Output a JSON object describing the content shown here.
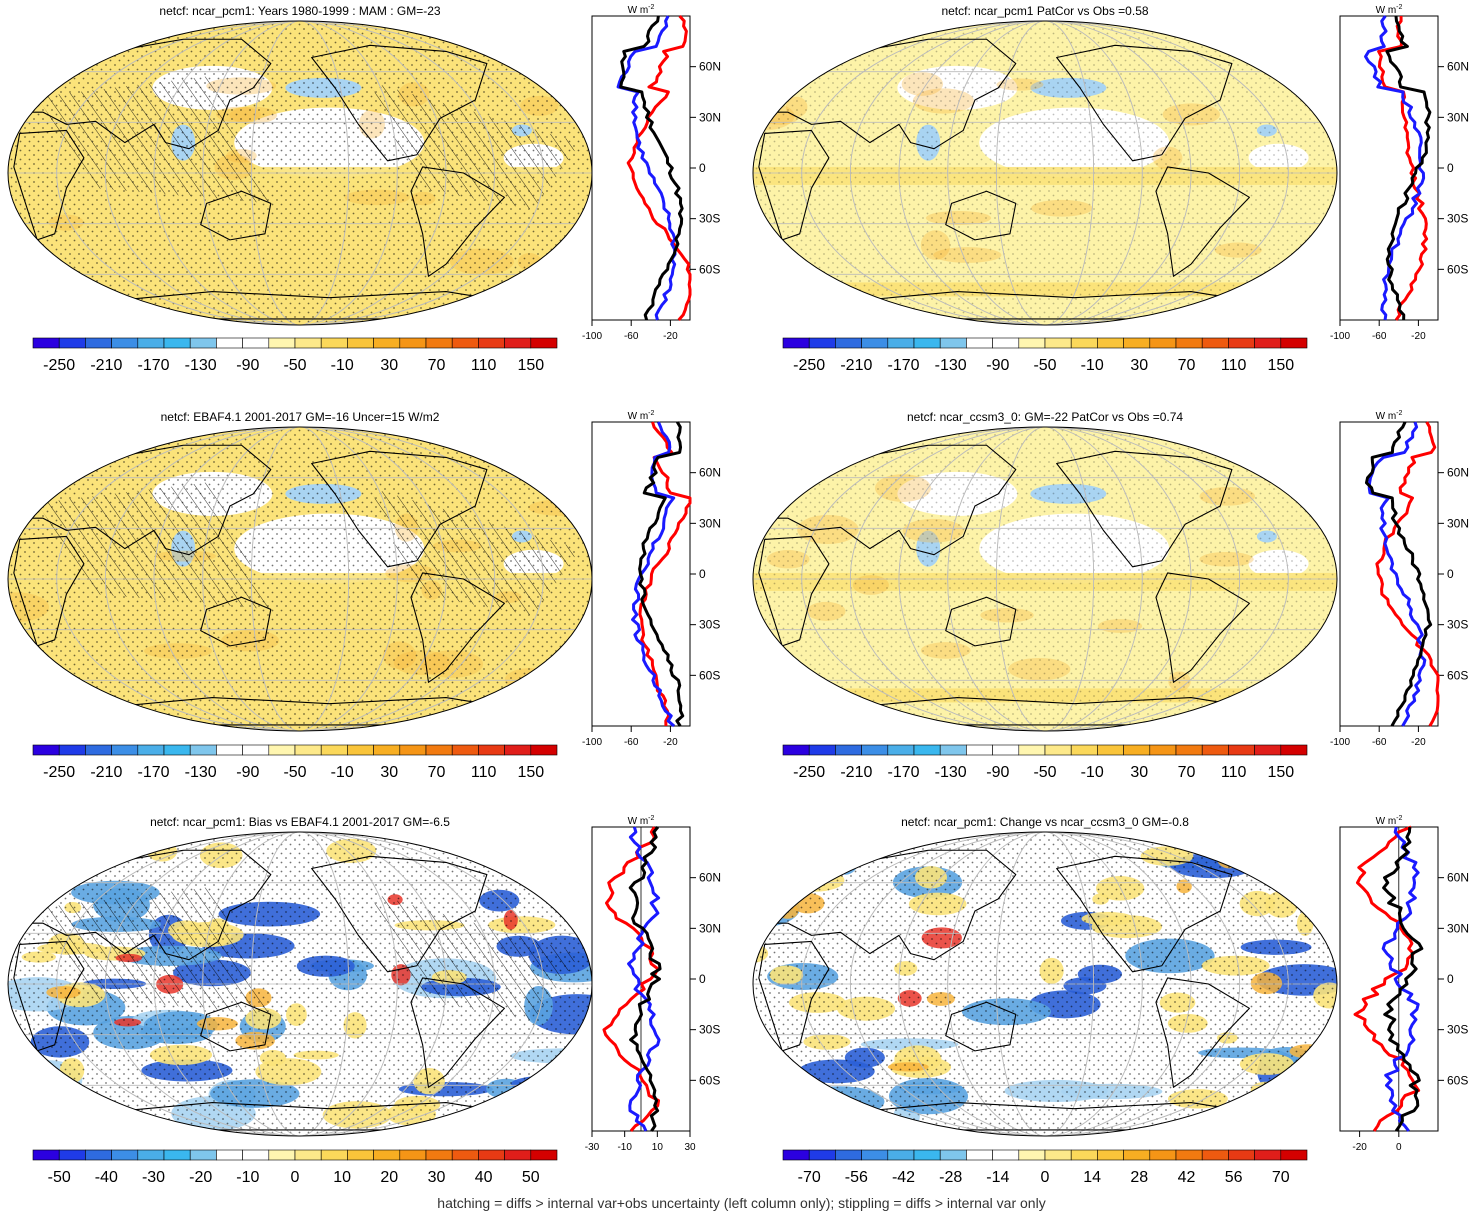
{
  "footnote": "hatching = diffs > internal var+obs uncertainty (left column only); stippling = diffs > internal var only",
  "colors": {
    "yellow_light": "#fdf3a8",
    "yellow": "#fbe37a",
    "orange": "#f7b43c",
    "blue_light": "#a9d4f2",
    "blue": "#5aa3e0",
    "deep_blue": "#2b5fd6",
    "red": "#e8352a",
    "zonal_red": "#ff0000",
    "zonal_blue": "#1a1aff",
    "zonal_black": "#000000"
  },
  "zonal_unit": "W m",
  "zonal_unit_exp": "-2",
  "lat_labels": [
    "60N",
    "30N",
    "0",
    "30S",
    "60S"
  ],
  "panels": [
    {
      "id": "p1",
      "title": "netcf: ncar_pcm1: Years 1980-1999 : MAM : GM=-23",
      "colorbar_labels": [
        "-250",
        "-210",
        "-170",
        "-130",
        "-90",
        "-50",
        "-10",
        "30",
        "70",
        "110",
        "150"
      ],
      "colorbar_colors": [
        "#2b00e0",
        "#1f3be8",
        "#2e6be0",
        "#3c8ee6",
        "#4aaee8",
        "#3ab7ee",
        "#7fc6ec",
        "#ffffff",
        "#ffffff",
        "#fff6b0",
        "#fde98a",
        "#fbd85a",
        "#f9c43a",
        "#f7ae22",
        "#f59516",
        "#f27a10",
        "#ee5a10",
        "#e83a14",
        "#e01e1a",
        "#d40000"
      ],
      "zonal_ticks": [
        "-100",
        "-60",
        "-20"
      ],
      "zonal_min": -100,
      "zonal_max": 0,
      "scheme": "climatology"
    },
    {
      "id": "p2",
      "title": "netcf: ncar_pcm1 PatCor vs Obs =0.58",
      "colorbar_labels": [
        "-250",
        "-210",
        "-170",
        "-130",
        "-90",
        "-50",
        "-10",
        "30",
        "70",
        "110",
        "150"
      ],
      "colorbar_colors": [
        "#2b00e0",
        "#1f3be8",
        "#2e6be0",
        "#3c8ee6",
        "#4aaee8",
        "#3ab7ee",
        "#7fc6ec",
        "#ffffff",
        "#ffffff",
        "#fff6b0",
        "#fde98a",
        "#fbd85a",
        "#f9c43a",
        "#f7ae22",
        "#f59516",
        "#f27a10",
        "#ee5a10",
        "#e83a14",
        "#e01e1a",
        "#d40000"
      ],
      "zonal_ticks": [
        "-100",
        "-60",
        "-20"
      ],
      "zonal_min": -100,
      "zonal_max": 0,
      "scheme": "climatology_light"
    },
    {
      "id": "p3",
      "title": "netcf: EBAF4.1 2001-2017 GM=-16 Uncer=15 W/m2",
      "colorbar_labels": [
        "-250",
        "-210",
        "-170",
        "-130",
        "-90",
        "-50",
        "-10",
        "30",
        "70",
        "110",
        "150"
      ],
      "colorbar_colors": [
        "#2b00e0",
        "#1f3be8",
        "#2e6be0",
        "#3c8ee6",
        "#4aaee8",
        "#3ab7ee",
        "#7fc6ec",
        "#ffffff",
        "#ffffff",
        "#fff6b0",
        "#fde98a",
        "#fbd85a",
        "#f9c43a",
        "#f7ae22",
        "#f59516",
        "#f27a10",
        "#ee5a10",
        "#e83a14",
        "#e01e1a",
        "#d40000"
      ],
      "zonal_ticks": [
        "-100",
        "-60",
        "-20"
      ],
      "zonal_min": -100,
      "zonal_max": 0,
      "scheme": "climatology"
    },
    {
      "id": "p4",
      "title": "netcf: ncar_ccsm3_0: GM=-22 PatCor vs Obs =0.74",
      "colorbar_labels": [
        "-250",
        "-210",
        "-170",
        "-130",
        "-90",
        "-50",
        "-10",
        "30",
        "70",
        "110",
        "150"
      ],
      "colorbar_colors": [
        "#2b00e0",
        "#1f3be8",
        "#2e6be0",
        "#3c8ee6",
        "#4aaee8",
        "#3ab7ee",
        "#7fc6ec",
        "#ffffff",
        "#ffffff",
        "#fff6b0",
        "#fde98a",
        "#fbd85a",
        "#f9c43a",
        "#f7ae22",
        "#f59516",
        "#f27a10",
        "#ee5a10",
        "#e83a14",
        "#e01e1a",
        "#d40000"
      ],
      "zonal_ticks": [
        "-100",
        "-60",
        "-20"
      ],
      "zonal_min": -100,
      "zonal_max": 0,
      "scheme": "climatology_light"
    },
    {
      "id": "p5",
      "title": "netcf: ncar_pcm1: Bias vs EBAF4.1 2001-2017 GM=-6.5",
      "colorbar_labels": [
        "-50",
        "-40",
        "-30",
        "-20",
        "-10",
        "0",
        "10",
        "20",
        "30",
        "40",
        "50"
      ],
      "colorbar_colors": [
        "#2b00e0",
        "#1f3be8",
        "#2e6be0",
        "#3c8ee6",
        "#4aaee8",
        "#3ab7ee",
        "#7fc6ec",
        "#ffffff",
        "#ffffff",
        "#fff6b0",
        "#fde98a",
        "#fbd85a",
        "#f9c43a",
        "#f7ae22",
        "#f59516",
        "#f27a10",
        "#ee5a10",
        "#e83a14",
        "#e01e1a",
        "#d40000"
      ],
      "zonal_ticks": [
        "-30",
        "-10",
        "10",
        "30"
      ],
      "zonal_min": -30,
      "zonal_max": 30,
      "scheme": "bias"
    },
    {
      "id": "p6",
      "title": "netcf: ncar_pcm1: Change vs ncar_ccsm3_0 GM=-0.8",
      "colorbar_labels": [
        "-70",
        "-56",
        "-42",
        "-28",
        "-14",
        "0",
        "14",
        "28",
        "42",
        "56",
        "70"
      ],
      "colorbar_colors": [
        "#2b00e0",
        "#1f3be8",
        "#2e6be0",
        "#3c8ee6",
        "#4aaee8",
        "#3ab7ee",
        "#7fc6ec",
        "#ffffff",
        "#ffffff",
        "#fff6b0",
        "#fde98a",
        "#fbd85a",
        "#f9c43a",
        "#f7ae22",
        "#f59516",
        "#f27a10",
        "#ee5a10",
        "#e83a14",
        "#e01e1a",
        "#d40000"
      ],
      "zonal_ticks": [
        "-20",
        "0"
      ],
      "zonal_min": -30,
      "zonal_max": 20,
      "scheme": "change"
    }
  ]
}
